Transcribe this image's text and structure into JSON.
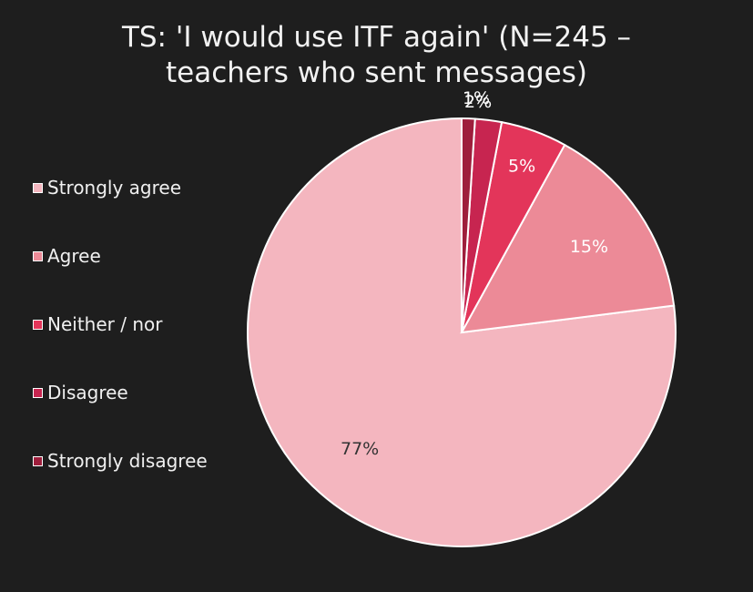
{
  "chart_data": {
    "type": "pie",
    "title": "TS: 'I would use ITF again' (N=245 –",
    "subtitle": "teachers who sent messages)",
    "categories": [
      "Strongly agree",
      "Agree",
      "Neither / nor",
      "Disagree",
      "Strongly disagree"
    ],
    "values": [
      77,
      15,
      5,
      2,
      1
    ],
    "labels": [
      "77%",
      "15%",
      "5%",
      "2%",
      "1%"
    ],
    "colors": [
      "#f4b6bf",
      "#ec8a97",
      "#e3355a",
      "#c72550",
      "#9e1e3c"
    ],
    "label_colors": [
      "#333333",
      "#ffffff",
      "#ffffff",
      "#ffffff",
      "#ffffff"
    ],
    "legend_position": "left",
    "start_angle_deg": 0,
    "direction": "clockwise"
  }
}
